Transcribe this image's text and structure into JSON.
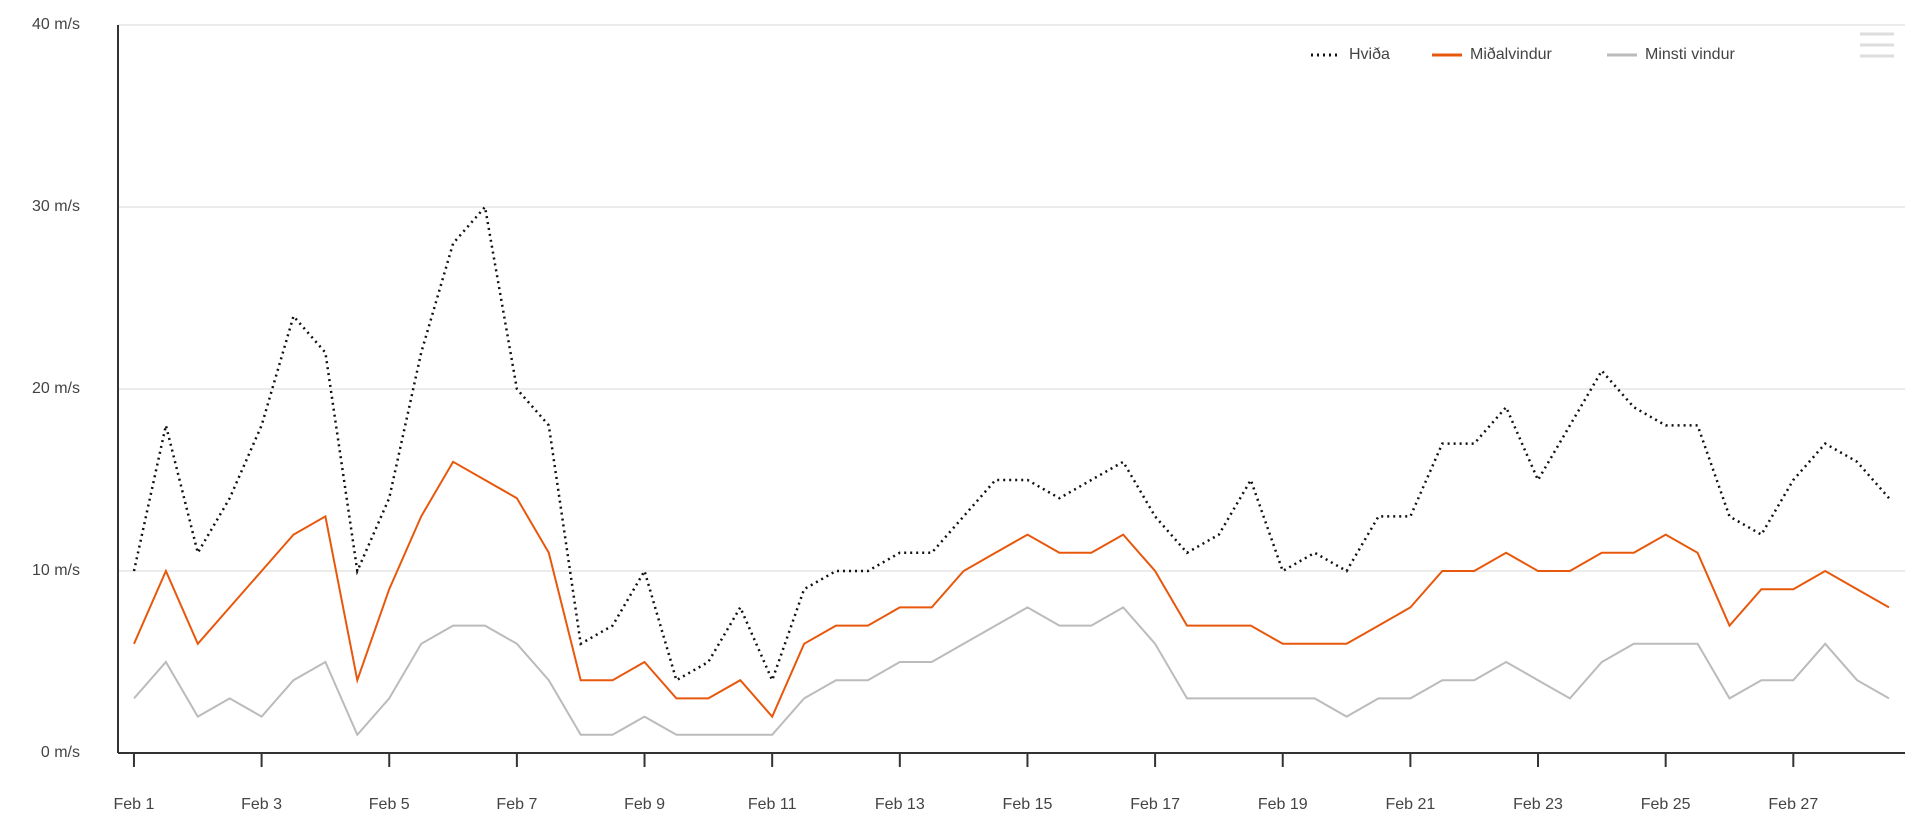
{
  "chart_data": {
    "type": "line",
    "x": [
      1,
      1.5,
      2,
      2.5,
      3,
      3.5,
      4,
      4.5,
      5,
      5.5,
      6,
      6.5,
      7,
      7.5,
      8,
      8.5,
      9,
      9.5,
      10,
      10.5,
      11,
      11.5,
      12,
      12.5,
      13,
      13.5,
      14,
      14.5,
      15,
      15.5,
      16,
      16.5,
      17,
      17.5,
      18,
      18.5,
      19,
      19.5,
      20,
      20.5,
      21,
      21.5,
      22,
      22.5,
      23,
      23.5,
      24,
      24.5,
      25,
      25.5,
      26,
      26.5,
      27,
      27.5,
      28,
      28.5
    ],
    "series": [
      {
        "name": "Hviða",
        "color": "#111111",
        "dash": true,
        "values": [
          10,
          18,
          11,
          14,
          18,
          24,
          22,
          10,
          14,
          22,
          28,
          30,
          20,
          18,
          6,
          7,
          10,
          4,
          5,
          8,
          4,
          9,
          10,
          10,
          11,
          11,
          13,
          15,
          15,
          14,
          15,
          16,
          13,
          11,
          12,
          15,
          10,
          11,
          10,
          13,
          13,
          17,
          17,
          19,
          15,
          18,
          21,
          19,
          18,
          18,
          13,
          12,
          15,
          17,
          16,
          14
        ]
      },
      {
        "name": "Miðalvindur",
        "color": "#e8580c",
        "dash": false,
        "values": [
          6,
          10,
          6,
          8,
          10,
          12,
          13,
          4,
          9,
          13,
          16,
          15,
          14,
          11,
          4,
          4,
          5,
          3,
          3,
          4,
          2,
          6,
          7,
          7,
          8,
          8,
          10,
          11,
          12,
          11,
          11,
          12,
          10,
          7,
          7,
          7,
          6,
          6,
          6,
          7,
          8,
          10,
          10,
          11,
          10,
          10,
          11,
          11,
          12,
          11,
          7,
          9,
          9,
          10,
          9,
          8
        ]
      },
      {
        "name": "Minsti vindur",
        "color": "#bbbbbb",
        "dash": false,
        "values": [
          3,
          5,
          2,
          3,
          2,
          4,
          5,
          1,
          3,
          6,
          7,
          7,
          6,
          4,
          1,
          1,
          2,
          1,
          1,
          1,
          1,
          3,
          4,
          4,
          5,
          5,
          6,
          7,
          8,
          7,
          7,
          8,
          6,
          3,
          3,
          3,
          3,
          3,
          2,
          3,
          3,
          4,
          4,
          5,
          4,
          3,
          5,
          6,
          6,
          6,
          3,
          4,
          4,
          6,
          4,
          3
        ]
      }
    ],
    "xlim": [
      0.75,
      28.75
    ],
    "xticks": [
      {
        "value": 1,
        "label": "Feb 1"
      },
      {
        "value": 3,
        "label": "Feb 3"
      },
      {
        "value": 5,
        "label": "Feb 5"
      },
      {
        "value": 7,
        "label": "Feb 7"
      },
      {
        "value": 9,
        "label": "Feb 9"
      },
      {
        "value": 11,
        "label": "Feb 11"
      },
      {
        "value": 13,
        "label": "Feb 13"
      },
      {
        "value": 15,
        "label": "Feb 15"
      },
      {
        "value": 17,
        "label": "Feb 17"
      },
      {
        "value": 19,
        "label": "Feb 19"
      },
      {
        "value": 21,
        "label": "Feb 21"
      },
      {
        "value": 23,
        "label": "Feb 23"
      },
      {
        "value": 25,
        "label": "Feb 25"
      },
      {
        "value": 27,
        "label": "Feb 27"
      }
    ],
    "ylim": [
      0,
      40
    ],
    "yticks": [
      {
        "value": 0,
        "label": "0 m/s"
      },
      {
        "value": 10,
        "label": "10 m/s"
      },
      {
        "value": 20,
        "label": "20 m/s"
      },
      {
        "value": 30,
        "label": "30 m/s"
      },
      {
        "value": 40,
        "label": "40 m/s"
      }
    ],
    "grid": true,
    "legend": "top-right"
  }
}
